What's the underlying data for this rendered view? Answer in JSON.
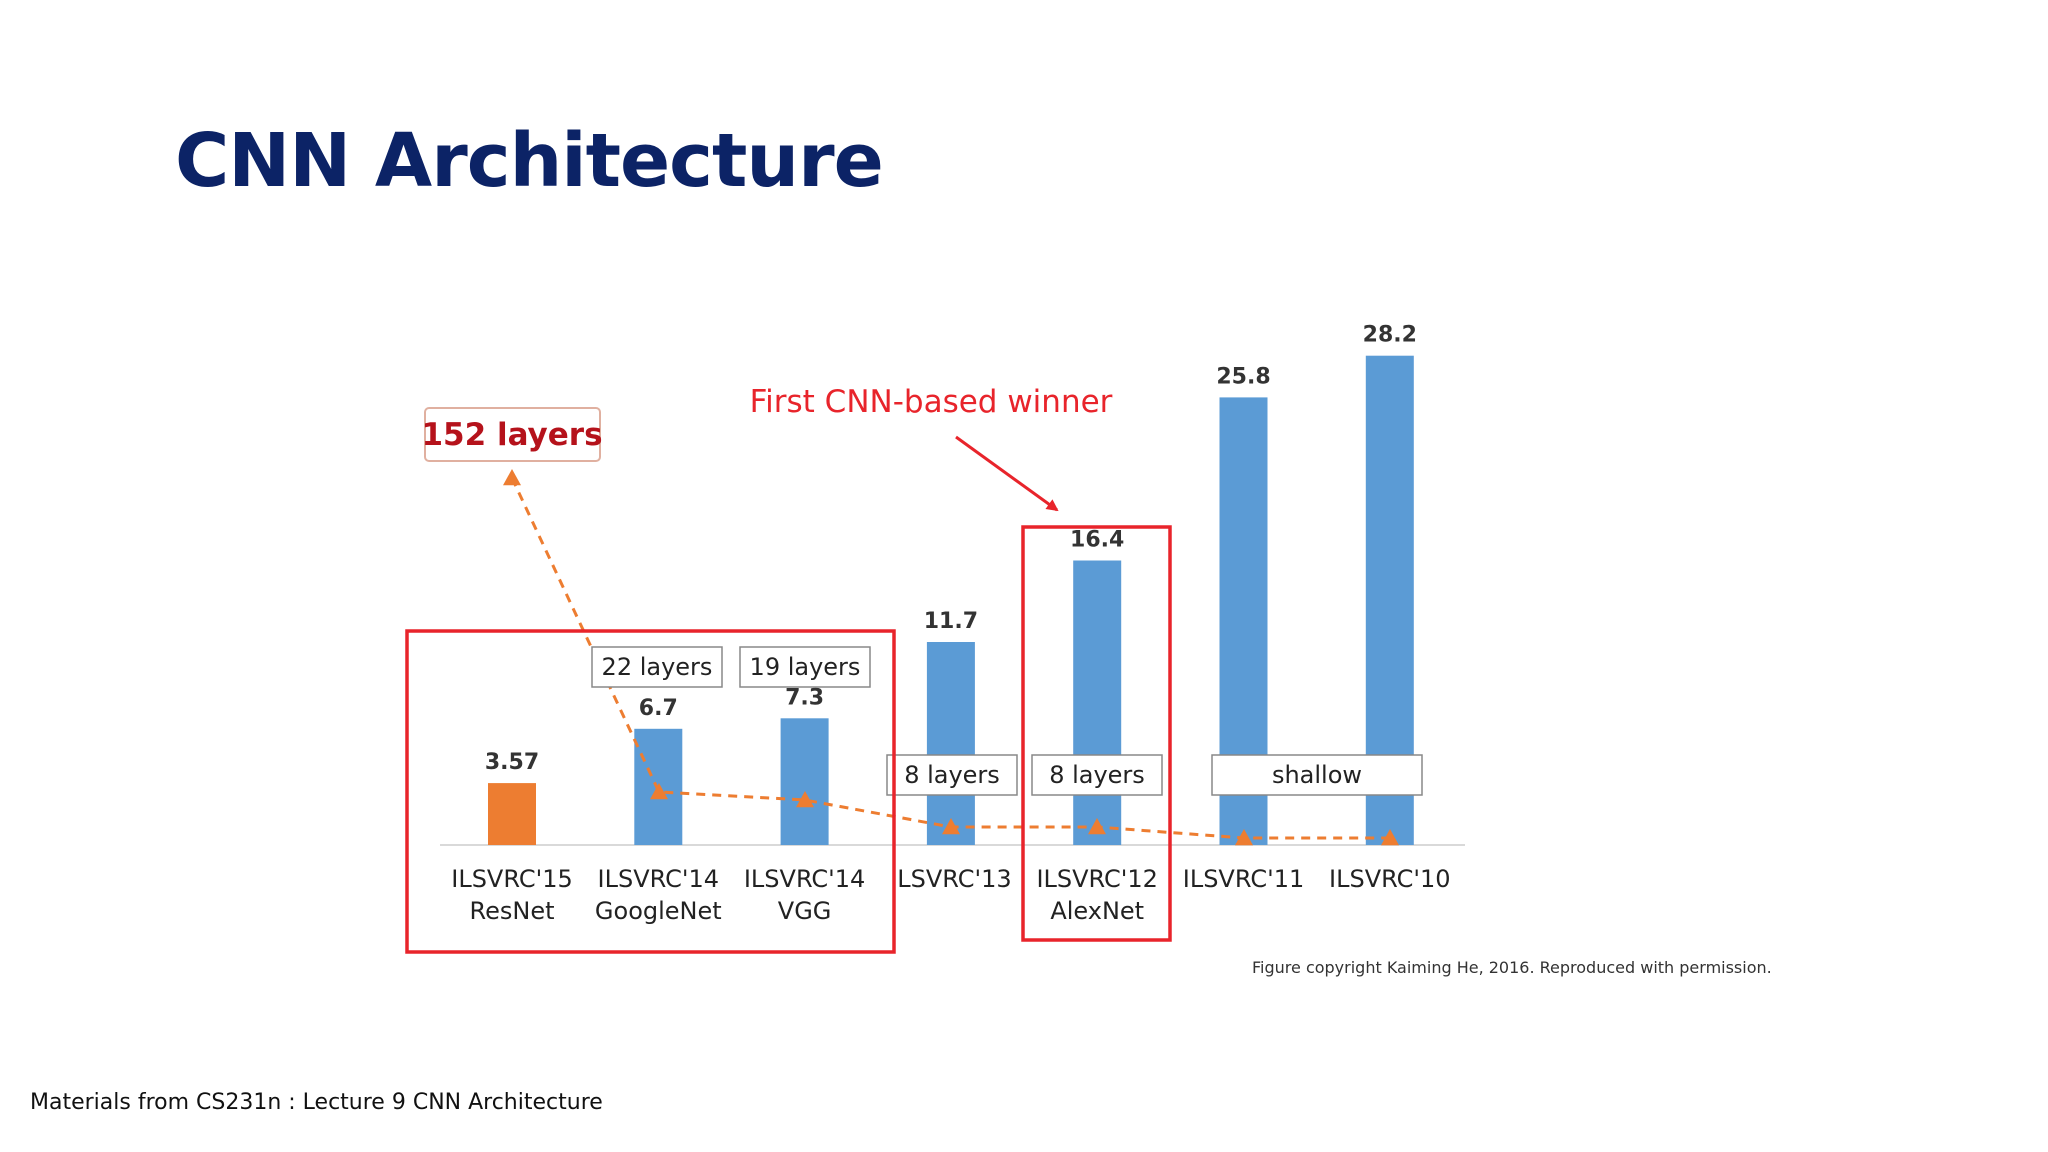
{
  "slide": {
    "title": "CNN Architecture",
    "footer": "Materials from CS231n : Lecture 9 CNN Architecture"
  },
  "chart_data": {
    "type": "bar",
    "categories": [
      {
        "year": "ILSVRC'15",
        "name": "ResNet"
      },
      {
        "year": "ILSVRC'14",
        "name": "GoogleNet"
      },
      {
        "year": "ILSVRC'14",
        "name": "VGG"
      },
      {
        "year": "ILSVRC'13",
        "name": ""
      },
      {
        "year": "ILSVRC'12",
        "name": "AlexNet"
      },
      {
        "year": "ILSVRC'11",
        "name": ""
      },
      {
        "year": "ILSVRC'10",
        "name": ""
      }
    ],
    "values": [
      3.57,
      6.7,
      7.3,
      11.7,
      16.4,
      25.8,
      28.2
    ],
    "value_labels": [
      "3.57",
      "6.7",
      "7.3",
      "11.7",
      "16.4",
      "25.8",
      "28.2"
    ],
    "ylim": [
      0,
      30
    ],
    "bar_colors": [
      "#ed7d31",
      "#5b9bd5",
      "#5b9bd5",
      "#5b9bd5",
      "#5b9bd5",
      "#5b9bd5",
      "#5b9bd5"
    ],
    "layer_labels": {
      "resnet": "152 layers",
      "googlenet": "22 layers",
      "vgg": "19 layers",
      "ilsvrc13": "8 layers",
      "alexnet": "8 layers",
      "shallow": "shallow"
    },
    "depth_trend_color": "#ed7d31",
    "annotation": "First CNN-based winner",
    "annotation_color": "#e8242b",
    "highlight_color": "#e8242b",
    "copyright": "Figure copyright Kaiming He, 2016. Reproduced with permission."
  }
}
